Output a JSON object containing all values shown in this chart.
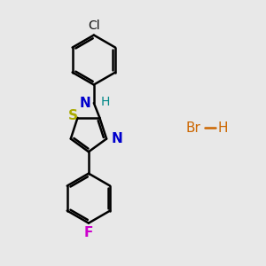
{
  "background_color": "#e8e8e8",
  "bond_color": "#000000",
  "S_color": "#aaaa00",
  "N_color": "#0000cc",
  "Cl_color": "#111111",
  "F_color": "#cc00cc",
  "H_color": "#008888",
  "Br_color": "#cc6600",
  "line_width": 1.8,
  "figsize": [
    3.0,
    3.0
  ],
  "dpi": 100,
  "xlim": [
    0,
    10
  ],
  "ylim": [
    0,
    10
  ]
}
